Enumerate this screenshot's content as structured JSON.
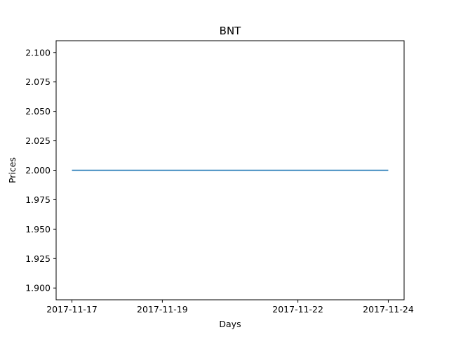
{
  "chart_data": {
    "type": "line",
    "title": "BNT",
    "xlabel": "Days",
    "ylabel": "Prices",
    "x_ticks": [
      "2017-11-17",
      "2017-11-19",
      "2017-11-22",
      "2017-11-24"
    ],
    "y_ticks": [
      "1.900",
      "1.925",
      "1.950",
      "1.975",
      "2.000",
      "2.025",
      "2.050",
      "2.075",
      "2.100"
    ],
    "ylim": [
      1.89,
      2.11
    ],
    "xlim": [
      "2017-11-16",
      "2017-11-24"
    ],
    "grid": false,
    "series": [
      {
        "color": "#1f77b4",
        "x": [
          "2017-11-17",
          "2017-11-24"
        ],
        "values": [
          2.0,
          2.0
        ]
      }
    ]
  }
}
